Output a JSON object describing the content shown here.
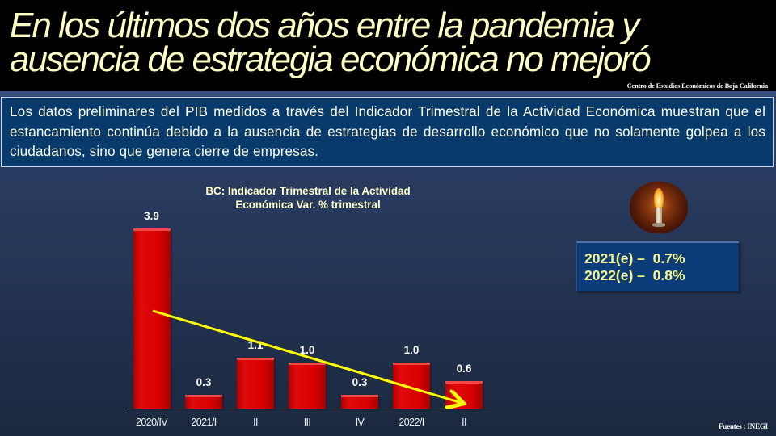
{
  "header": {
    "title_line1": "En los últimos dos años entre la pandemia y",
    "title_line2": "ausencia de estrategia económica no mejoró",
    "organization": "Centro de Estudios  Económicos  de  Baja California"
  },
  "intro": {
    "text": "Los datos preliminares del PIB medidos a través del Indicador Trimestral de la Actividad Económica muestran que el estancamiento continúa debido a la ausencia de estrategias de desarrollo económico que no solamente golpea a los ciudadanos, sino que genera cierre de empresas."
  },
  "chart": {
    "title_line1": "BC: Indicador Trimestral de la Actividad",
    "title_line2": "Económica Var. % trimestral"
  },
  "chart_data": {
    "type": "bar",
    "title": "BC: Indicador Trimestral de la Actividad Económica Var. % trimestral",
    "categories": [
      "2020/IV",
      "2021/I",
      "II",
      "III",
      "IV",
      "2022/I",
      "II"
    ],
    "values": [
      3.9,
      0.3,
      1.1,
      1.0,
      0.3,
      1.0,
      0.6
    ],
    "value_labels": [
      "3.9",
      "0.3",
      "1.1",
      "1.0",
      "0.3",
      "1.0",
      "0.6"
    ],
    "xlabel": "",
    "ylabel": "",
    "ylim": [
      0,
      4
    ],
    "grid": false,
    "legend": null,
    "bar_color": "#d40000",
    "annotations": [
      {
        "type": "trend-arrow",
        "color": "#ffff00",
        "from_category": "2020/IV",
        "to_category": "II (2022)",
        "direction": "down"
      }
    ]
  },
  "forecast": {
    "line1": "2021(e) –  0.7%",
    "line2": "2022(e) –  0.8%"
  },
  "footer": {
    "sources": "Fuentes :  INEGI"
  },
  "colors": {
    "title": "#ffffc6",
    "header_bg": "#000000",
    "intro_bg": "#083a6c",
    "bar": "#d40000",
    "arrow": "#ffff00",
    "forecast_text": "#f6f68e"
  }
}
